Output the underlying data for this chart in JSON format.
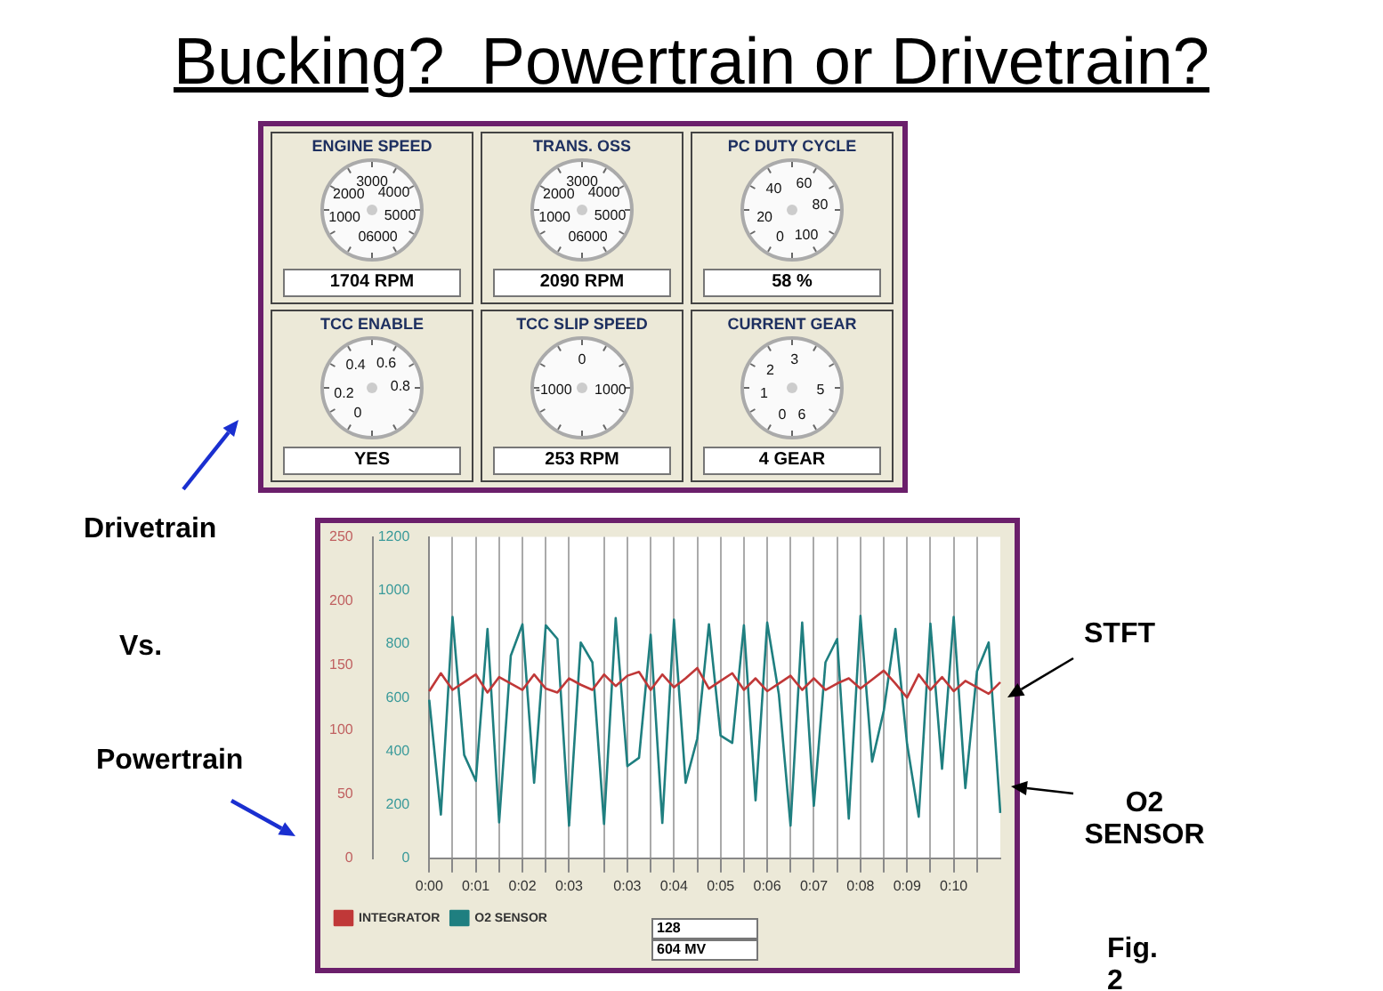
{
  "chart_data": [
    {
      "type": "other",
      "title": "Bucking?  Powertrain or Drivetrain?",
      "annotations": [
        "Drivetrain",
        "Vs.",
        "Powertrain",
        "STFT",
        "O2 SENSOR",
        "Fig. 2"
      ]
    },
    {
      "type": "other",
      "title": "ENGINE SPEED",
      "annotations": [
        "1704 RPM",
        "0",
        "1000",
        "2000",
        "3000",
        "4000",
        "5000",
        "6000"
      ]
    },
    {
      "type": "other",
      "title": "TRANS. OSS",
      "annotations": [
        "2090 RPM",
        "0",
        "1000",
        "2000",
        "3000",
        "4000",
        "5000",
        "6000"
      ]
    },
    {
      "type": "other",
      "title": "PC DUTY CYCLE",
      "annotations": [
        "58 %",
        "0",
        "20",
        "40",
        "60",
        "80",
        "100"
      ]
    },
    {
      "type": "other",
      "title": "TCC ENABLE",
      "annotations": [
        "YES",
        "0",
        "0.2",
        "0.4",
        "0.6",
        "0.8"
      ]
    },
    {
      "type": "other",
      "title": "TCC SLIP SPEED",
      "annotations": [
        "253 RPM",
        "-1000",
        "0",
        "1000"
      ]
    },
    {
      "type": "other",
      "title": "CURRENT GEAR",
      "annotations": [
        "4 GEAR",
        "0",
        "1",
        "2",
        "3",
        "5",
        "6"
      ]
    },
    {
      "type": "line",
      "marker": "none",
      "grid": "x",
      "legend": "bottom left",
      "categories": [
        "0:00",
        null,
        null,
        null,
        "0:01",
        null,
        null,
        null,
        "0:02",
        null,
        null,
        null,
        "0:03",
        null,
        null,
        null,
        null,
        "0:03",
        null,
        null,
        null,
        "0:04",
        null,
        null,
        null,
        "0:05",
        null,
        null,
        null,
        "0:06",
        null,
        null,
        null,
        "0:07",
        null,
        null,
        null,
        "0:08",
        null,
        null,
        null,
        "0:09",
        null,
        null,
        null,
        "0:10",
        null,
        null,
        null,
        null
      ],
      "series": [
        {
          "name": "INTEGRATOR",
          "color": "#c03838",
          "axis": "y2",
          "values": [
            130,
            144,
            131,
            137,
            143,
            129,
            141,
            136,
            131,
            143,
            132,
            129,
            140,
            135,
            131,
            143,
            134,
            142,
            145,
            131,
            143,
            133,
            140,
            148,
            132,
            138,
            144,
            131,
            140,
            130,
            136,
            142,
            131,
            140,
            131,
            136,
            140,
            132,
            139,
            146,
            136,
            125,
            143,
            131,
            141,
            130,
            138,
            133,
            128,
            137
          ]
        },
        {
          "name": "O2 SENSOR",
          "color": "#1f7f80",
          "values": [
            592,
            163,
            901,
            386,
            289,
            856,
            134,
            757,
            874,
            282,
            870,
            819,
            122,
            806,
            732,
            128,
            897,
            344,
            375,
            835,
            132,
            891,
            282,
            447,
            874,
            458,
            431,
            870,
            216,
            880,
            612,
            122,
            880,
            196,
            732,
            819,
            148,
            905,
            361,
            551,
            856,
            427,
            155,
            876,
            334,
            901,
            262,
            699,
            806,
            169
          ]
        }
      ],
      "ylim": [
        0,
        1200
      ],
      "yticks": [
        0,
        200,
        400,
        600,
        800,
        1000,
        1200
      ],
      "y2lim": [
        0,
        250
      ],
      "y2ticks": [
        0,
        50,
        100,
        150,
        200,
        250
      ],
      "annotations": [
        "128",
        "604 MV"
      ]
    }
  ]
}
